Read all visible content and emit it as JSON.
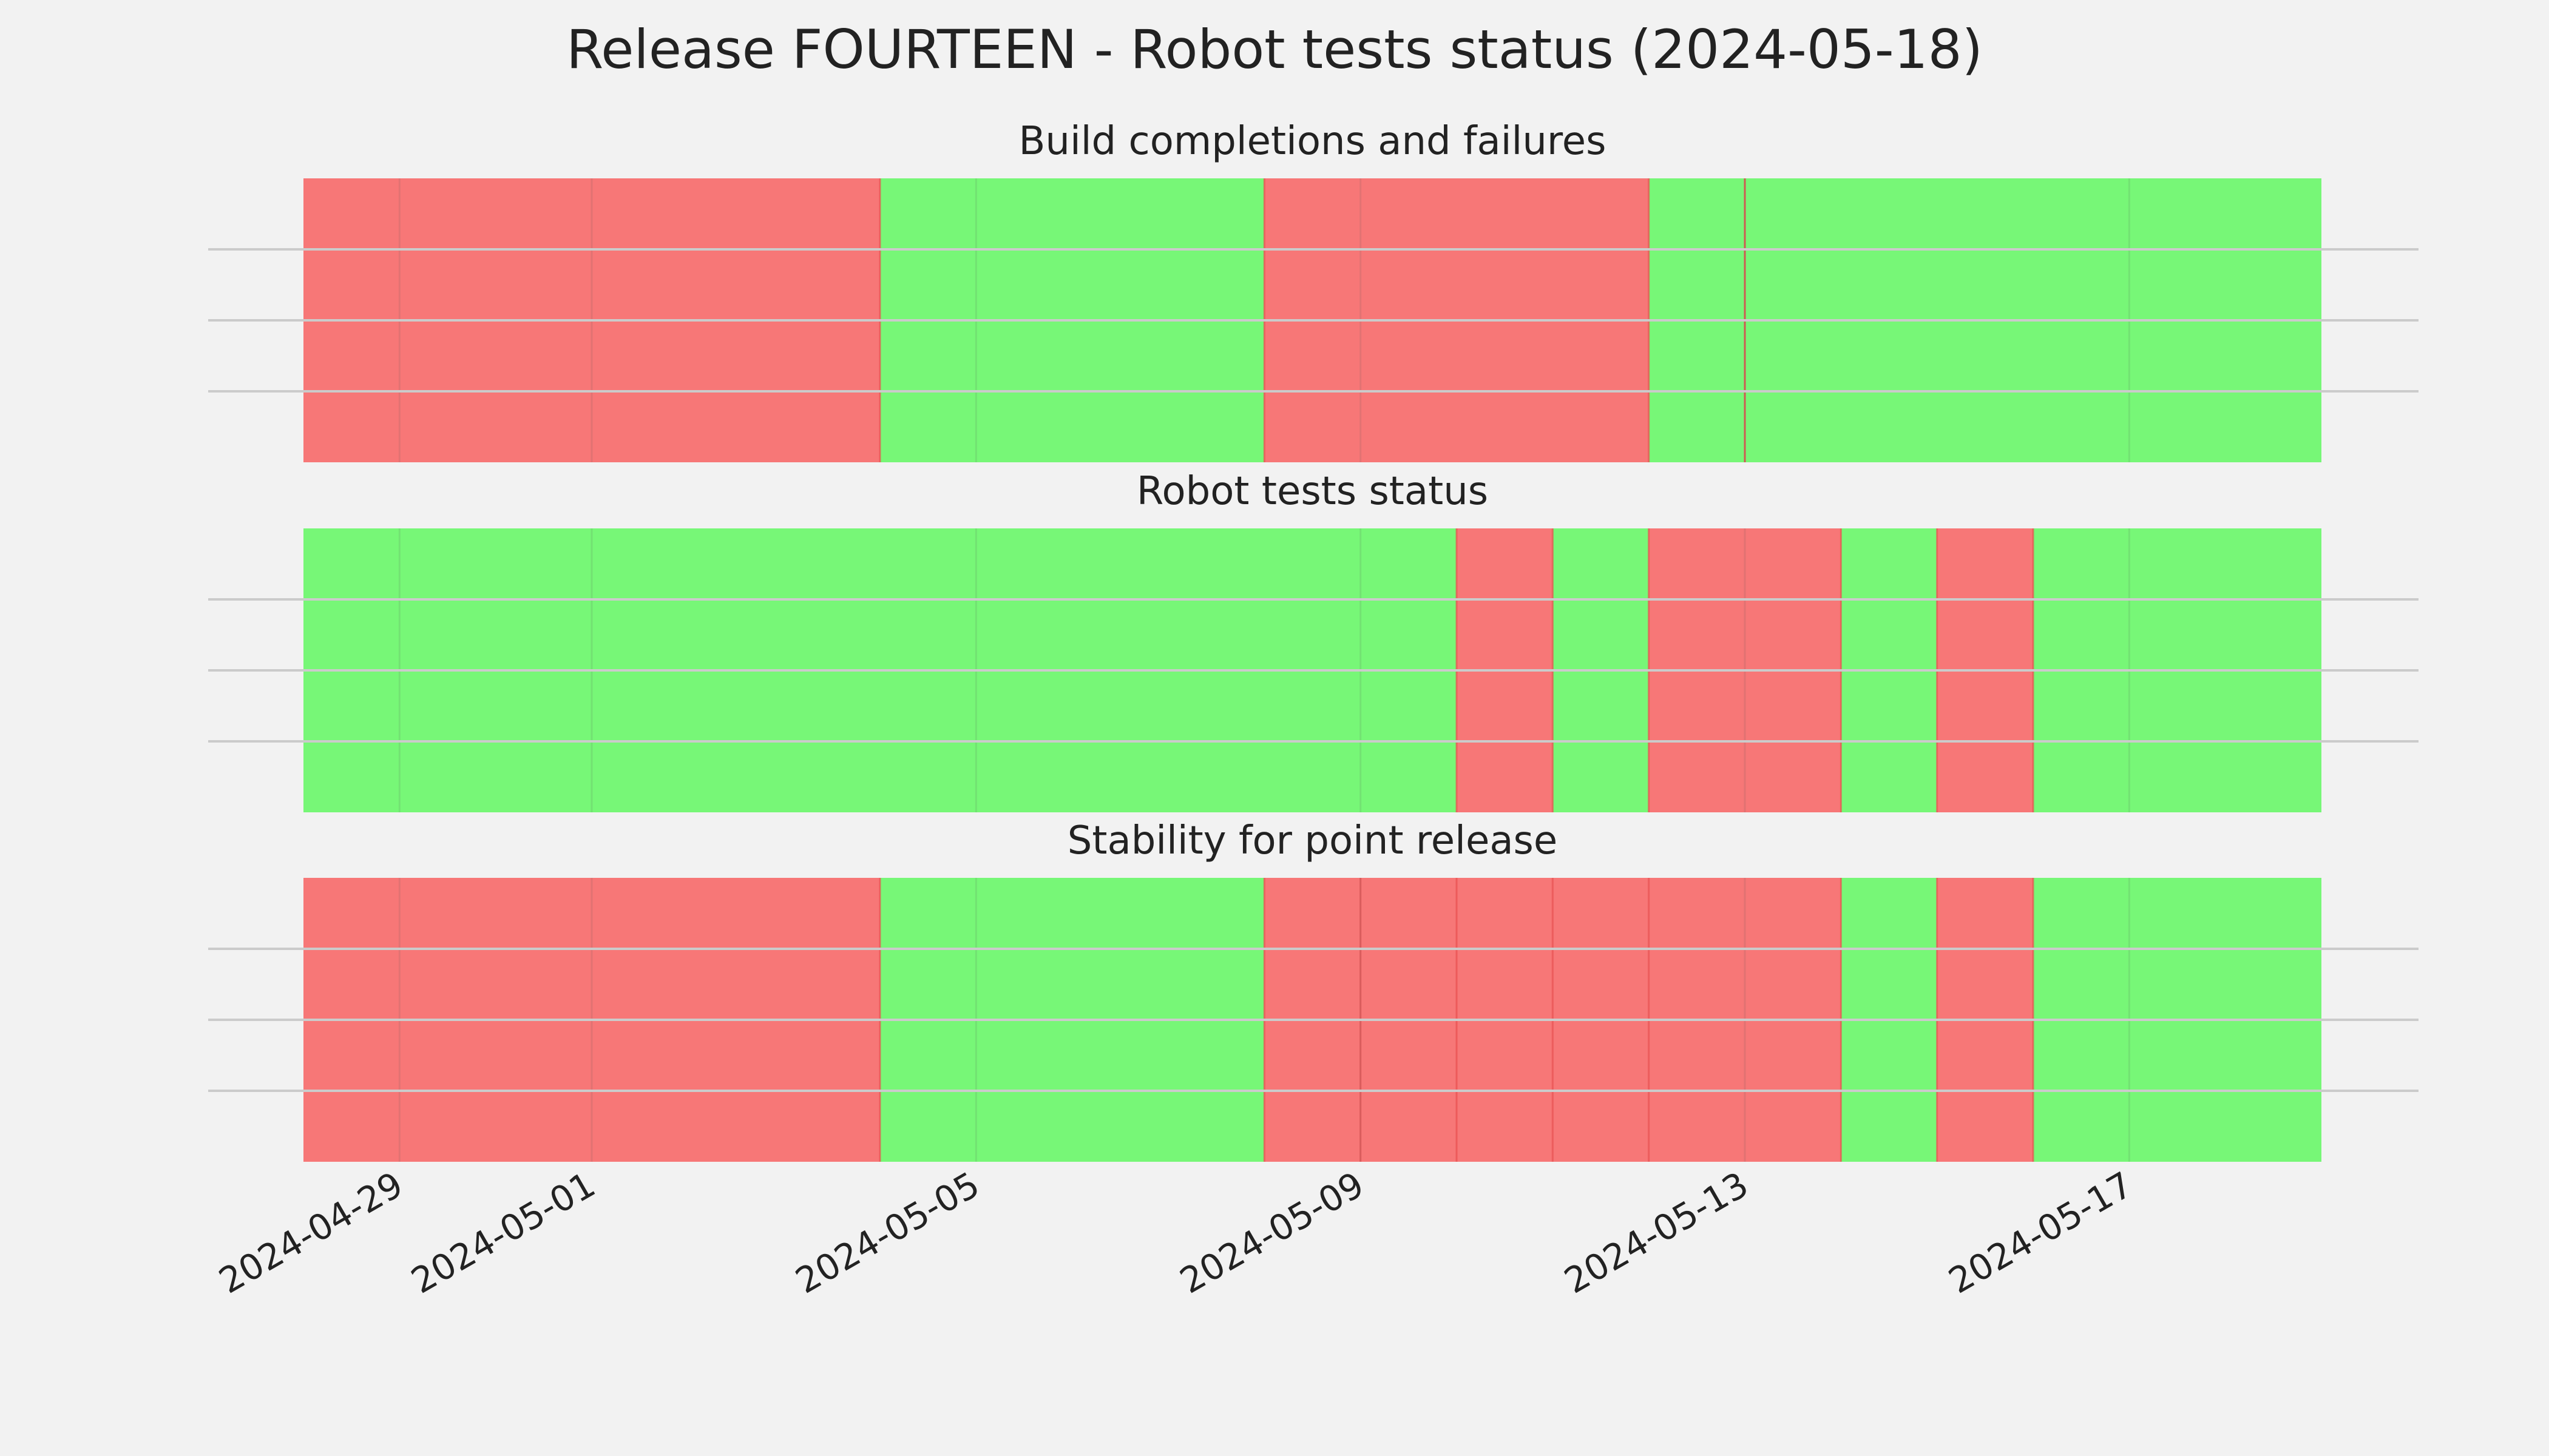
{
  "chart_data": {
    "type": "timeline",
    "title": "Release FOURTEEN - Robot tests status (2024-05-18)",
    "x_range": [
      "2024-04-28",
      "2024-05-19"
    ],
    "x_ticks": [
      "2024-04-29",
      "2024-05-01",
      "2024-05-05",
      "2024-05-09",
      "2024-05-13",
      "2024-05-17"
    ],
    "colors": {
      "pass": "#77f777",
      "fail": "#f77777",
      "background": "#f2f2f2",
      "grid": "#cbcbcb"
    },
    "panels": [
      {
        "title": "Build completions and failures",
        "segments": [
          {
            "start": "2024-04-28",
            "end": "2024-05-04",
            "status": "fail"
          },
          {
            "start": "2024-05-04",
            "end": "2024-05-08",
            "status": "pass"
          },
          {
            "start": "2024-05-08",
            "end": "2024-05-12",
            "status": "fail"
          },
          {
            "start": "2024-05-12",
            "end": "2024-05-13",
            "status": "pass"
          },
          {
            "start": "2024-05-13",
            "end": "2024-05-13",
            "status": "fail"
          },
          {
            "start": "2024-05-13",
            "end": "2024-05-19",
            "status": "pass"
          }
        ]
      },
      {
        "title": "Robot tests status",
        "segments": [
          {
            "start": "2024-04-28",
            "end": "2024-05-10",
            "status": "pass"
          },
          {
            "start": "2024-05-10",
            "end": "2024-05-11",
            "status": "fail"
          },
          {
            "start": "2024-05-11",
            "end": "2024-05-12",
            "status": "pass"
          },
          {
            "start": "2024-05-12",
            "end": "2024-05-14",
            "status": "fail"
          },
          {
            "start": "2024-05-14",
            "end": "2024-05-15",
            "status": "pass"
          },
          {
            "start": "2024-05-15",
            "end": "2024-05-16",
            "status": "fail"
          },
          {
            "start": "2024-05-16",
            "end": "2024-05-19",
            "status": "pass"
          }
        ]
      },
      {
        "title": "Stability for point release",
        "segments": [
          {
            "start": "2024-04-28",
            "end": "2024-05-04",
            "status": "fail"
          },
          {
            "start": "2024-05-04",
            "end": "2024-05-08",
            "status": "pass"
          },
          {
            "start": "2024-05-08",
            "end": "2024-05-09",
            "status": "fail"
          },
          {
            "start": "2024-05-09",
            "end": "2024-05-10",
            "status": "fail"
          },
          {
            "start": "2024-05-10",
            "end": "2024-05-11",
            "status": "fail"
          },
          {
            "start": "2024-05-11",
            "end": "2024-05-12",
            "status": "fail"
          },
          {
            "start": "2024-05-12",
            "end": "2024-05-14",
            "status": "fail"
          },
          {
            "start": "2024-05-14",
            "end": "2024-05-15",
            "status": "pass"
          },
          {
            "start": "2024-05-15",
            "end": "2024-05-16",
            "status": "fail"
          },
          {
            "start": "2024-05-16",
            "end": "2024-05-19",
            "status": "pass"
          }
        ]
      }
    ]
  }
}
